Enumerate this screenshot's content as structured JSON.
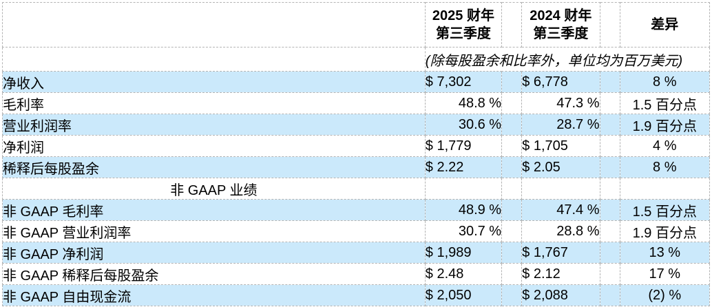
{
  "colors": {
    "row_shade": "#cbe9fb",
    "border": "#b3b3b3",
    "text": "#000000",
    "background": "#ffffff"
  },
  "table": {
    "header": {
      "fy2025_line1": "2025 财年",
      "fy2025_line2": "第三季度",
      "fy2024_line1": "2024 财年",
      "fy2024_line2": "第三季度",
      "diff_label": "差异",
      "unit_note": "(除每股盈余和比率外，单位均为百万美元)"
    },
    "rows": [
      {
        "label": "净收入",
        "v2025": "$ 7,302",
        "v2024": "$ 6,778",
        "diff": "8 %"
      },
      {
        "label": "毛利率",
        "v2025": "48.8 %",
        "v2024": "47.3 %",
        "diff": "1.5 百分点"
      },
      {
        "label": "营业利润率",
        "v2025": "30.6 %",
        "v2024": "28.7 %",
        "diff": "1.9 百分点"
      },
      {
        "label": "净利润",
        "v2025": "$ 1,779",
        "v2024": "$ 1,705",
        "diff": "4 %"
      },
      {
        "label": "稀释后每股盈余",
        "v2025": "$ 2.22",
        "v2024": "$ 2.05",
        "diff": "8 %"
      },
      {
        "label": "非 GAAP 业绩",
        "v2025": "",
        "v2024": "",
        "diff": ""
      },
      {
        "label": "非 GAAP 毛利率",
        "v2025": "48.9 %",
        "v2024": "47.4 %",
        "diff": "1.5 百分点"
      },
      {
        "label": "非 GAAP 营业利润率",
        "v2025": "30.7 %",
        "v2024": "28.8 %",
        "diff": "1.9 百分点"
      },
      {
        "label": "非 GAAP 净利润",
        "v2025": "$ 1,989",
        "v2024": "$ 1,767",
        "diff": "13 %"
      },
      {
        "label": "非 GAAP 稀释后每股盈余",
        "v2025": "$ 2.48",
        "v2024": "$ 2.12",
        "diff": "17 %"
      },
      {
        "label": "非 GAAP 自由现金流",
        "v2025": "$ 2,050",
        "v2024": "$ 2,088",
        "diff": "(2) %"
      }
    ]
  }
}
